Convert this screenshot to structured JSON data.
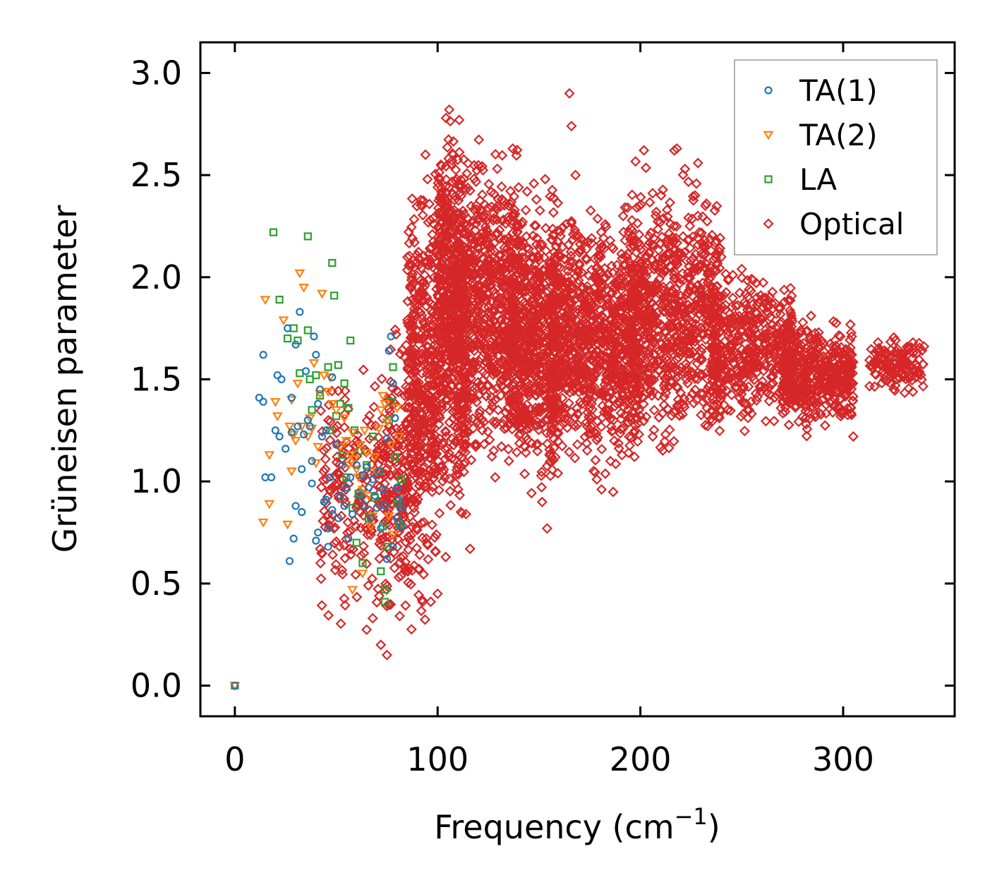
{
  "chart_data": {
    "type": "scatter",
    "title": "",
    "xlabel_base": "Frequency (cm",
    "xlabel_exp": "−1",
    "xlabel_end": ")",
    "ylabel": "Grüneisen parameter",
    "xlim": [
      -17,
      355
    ],
    "ylim": [
      -0.15,
      3.15
    ],
    "xticks": [
      0,
      100,
      200,
      300
    ],
    "xtick_labels": [
      "0",
      "100",
      "200",
      "300"
    ],
    "yticks": [
      0.0,
      0.5,
      1.0,
      1.5,
      2.0,
      2.5,
      3.0
    ],
    "ytick_labels": [
      "0.0",
      "0.5",
      "1.0",
      "1.5",
      "2.0",
      "2.5",
      "3.0"
    ],
    "grid": false,
    "legend_position": "top-right",
    "series": [
      {
        "name": "TA(1)",
        "marker": "circle",
        "color": "#1f77b4",
        "points": [
          [
            0,
            0.0
          ],
          [
            12,
            1.41
          ],
          [
            14,
            1.62
          ],
          [
            14,
            1.39
          ],
          [
            15,
            1.02
          ],
          [
            18,
            1.02
          ],
          [
            20,
            1.25
          ],
          [
            21,
            1.52
          ],
          [
            22,
            1.22
          ],
          [
            23,
            1.5
          ],
          [
            25,
            1.16
          ],
          [
            26,
            1.75
          ],
          [
            27,
            0.61
          ],
          [
            28,
            1.24
          ],
          [
            28,
            1.41
          ],
          [
            29,
            0.72
          ],
          [
            30,
            0.88
          ],
          [
            30,
            1.67
          ],
          [
            31,
            1.27
          ],
          [
            32,
            1.83
          ],
          [
            33,
            0.85
          ],
          [
            33,
            1.06
          ],
          [
            34,
            1.23
          ],
          [
            35,
            1.54
          ],
          [
            36,
            1.3
          ],
          [
            37,
            1.27
          ],
          [
            38,
            1.1
          ],
          [
            38,
            0.99
          ],
          [
            39,
            1.71
          ],
          [
            40,
            0.71
          ],
          [
            40,
            1.62
          ],
          [
            41,
            0.75
          ],
          [
            41,
            1.38
          ],
          [
            42,
            1.45
          ],
          [
            43,
            1.22
          ],
          [
            44,
            0.9
          ],
          [
            45,
            1.25
          ],
          [
            45,
            0.91
          ],
          [
            46,
            0.68
          ],
          [
            46,
            0.77
          ],
          [
            47,
            1.02
          ],
          [
            48,
            1.51
          ],
          [
            48,
            0.86
          ],
          [
            50,
            1.18
          ],
          [
            51,
            0.82
          ],
          [
            52,
            0.93
          ],
          [
            53,
            1.08
          ],
          [
            54,
            0.88
          ],
          [
            55,
            0.97
          ],
          [
            56,
            0.72
          ],
          [
            57,
            1.02
          ],
          [
            58,
            0.84
          ],
          [
            60,
            1.08
          ],
          [
            62,
            0.93
          ],
          [
            63,
            1.03
          ],
          [
            64,
            0.88
          ],
          [
            65,
            1.07
          ],
          [
            66,
            0.97
          ],
          [
            67,
            0.82
          ],
          [
            68,
            1.01
          ],
          [
            69,
            0.93
          ],
          [
            70,
            0.87
          ],
          [
            71,
            1.05
          ],
          [
            72,
            0.77
          ],
          [
            73,
            0.96
          ],
          [
            74,
            0.88
          ],
          [
            75,
            0.62
          ],
          [
            75,
            1.21
          ],
          [
            76,
            1.64
          ],
          [
            77,
            1.71
          ],
          [
            78,
            1.48
          ],
          [
            78,
            0.68
          ],
          [
            79,
            1.31
          ],
          [
            80,
            0.82
          ],
          [
            80,
            0.97
          ],
          [
            81,
            0.91
          ],
          [
            82,
            0.78
          ],
          [
            82,
            0.87
          ]
        ]
      },
      {
        "name": "TA(2)",
        "marker": "triangle-down",
        "color": "#ff7f0e",
        "points": [
          [
            0,
            0.0
          ],
          [
            14,
            0.8
          ],
          [
            15,
            1.89
          ],
          [
            17,
            1.13
          ],
          [
            17,
            0.89
          ],
          [
            20,
            1.39
          ],
          [
            21,
            1.32
          ],
          [
            24,
            1.79
          ],
          [
            26,
            0.79
          ],
          [
            27,
            1.27
          ],
          [
            28,
            1.4
          ],
          [
            28,
            1.05
          ],
          [
            29,
            1.23
          ],
          [
            30,
            1.2
          ],
          [
            31,
            1.48
          ],
          [
            32,
            2.02
          ],
          [
            33,
            1.27
          ],
          [
            34,
            1.95
          ],
          [
            36,
            1.22
          ],
          [
            37,
            1.31
          ],
          [
            38,
            1.26
          ],
          [
            39,
            1.58
          ],
          [
            40,
            1.09
          ],
          [
            41,
            1.17
          ],
          [
            42,
            1.43
          ],
          [
            43,
            1.92
          ],
          [
            44,
            1.52
          ],
          [
            46,
            1.44
          ],
          [
            47,
            1.51
          ],
          [
            48,
            1.38
          ],
          [
            50,
            1.35
          ],
          [
            52,
            1.17
          ],
          [
            54,
            1.31
          ],
          [
            55,
            1.2
          ],
          [
            56,
            1.08
          ],
          [
            57,
            1.13
          ],
          [
            58,
            1.24
          ],
          [
            59,
            1.11
          ],
          [
            60,
            1.06
          ],
          [
            61,
            1.02
          ],
          [
            62,
            1.18
          ],
          [
            63,
            0.96
          ],
          [
            64,
            1.25
          ],
          [
            65,
            1.14
          ],
          [
            66,
            0.93
          ],
          [
            67,
            0.78
          ],
          [
            68,
            0.83
          ],
          [
            69,
            1.12
          ],
          [
            70,
            1.05
          ],
          [
            71,
            1.26
          ],
          [
            72,
            1.35
          ],
          [
            73,
            1.42
          ],
          [
            74,
            1.38
          ],
          [
            75,
            1.29
          ],
          [
            76,
            0.83
          ],
          [
            77,
            1.18
          ],
          [
            78,
            0.74
          ],
          [
            80,
            1.36
          ],
          [
            81,
            1.22
          ],
          [
            58,
            0.47
          ],
          [
            63,
            0.55
          ]
        ]
      },
      {
        "name": "LA",
        "marker": "square",
        "color": "#2ca02c",
        "points": [
          [
            0,
            0.0
          ],
          [
            19,
            2.22
          ],
          [
            22,
            1.89
          ],
          [
            26,
            1.7
          ],
          [
            29,
            1.75
          ],
          [
            31,
            1.69
          ],
          [
            32,
            1.53
          ],
          [
            36,
            1.74
          ],
          [
            36,
            2.2
          ],
          [
            37,
            1.5
          ],
          [
            38,
            1.35
          ],
          [
            40,
            1.52
          ],
          [
            42,
            1.42
          ],
          [
            46,
            1.56
          ],
          [
            47,
            1.25
          ],
          [
            48,
            2.07
          ],
          [
            49,
            1.91
          ],
          [
            50,
            1.32
          ],
          [
            51,
            1.57
          ],
          [
            52,
            1.38
          ],
          [
            53,
            1.13
          ],
          [
            54,
            1.48
          ],
          [
            55,
            1.02
          ],
          [
            56,
            1.36
          ],
          [
            57,
            1.69
          ],
          [
            58,
            0.87
          ],
          [
            59,
            1.25
          ],
          [
            60,
            0.7
          ],
          [
            61,
            0.94
          ],
          [
            62,
            1.15
          ],
          [
            63,
            0.6
          ],
          [
            65,
            1.08
          ],
          [
            66,
            0.82
          ],
          [
            68,
            1.22
          ],
          [
            69,
            0.92
          ],
          [
            71,
            1.05
          ],
          [
            72,
            0.56
          ],
          [
            73,
            0.78
          ],
          [
            74,
            0.47
          ],
          [
            74,
            0.41
          ],
          [
            75,
            0.68
          ],
          [
            76,
            1.3
          ],
          [
            77,
            1.39
          ],
          [
            78,
            1.56
          ],
          [
            79,
            1.12
          ],
          [
            80,
            0.89
          ],
          [
            81,
            0.79
          ],
          [
            82,
            1.01
          ]
        ]
      },
      {
        "name": "Optical",
        "marker": "diamond",
        "color": "#d62728",
        "generated": true,
        "clusters": [
          {
            "x": [
              42,
              85
            ],
            "y": [
              0.15,
              1.7
            ],
            "n": 260
          },
          {
            "x": [
              72,
              100
            ],
            "y": [
              0.15,
              1.95
            ],
            "n": 220
          },
          {
            "x": [
              85,
              115
            ],
            "y": [
              0.55,
              2.65
            ],
            "n": 700
          },
          {
            "x": [
              100,
              112
            ],
            "y": [
              1.2,
              3.0
            ],
            "n": 260
          },
          {
            "x": [
              110,
              140
            ],
            "y": [
              0.9,
              2.8
            ],
            "n": 700
          },
          {
            "x": [
              135,
              160
            ],
            "y": [
              0.77,
              2.6
            ],
            "n": 650
          },
          {
            "x": [
              155,
              200
            ],
            "y": [
              0.9,
              2.5
            ],
            "n": 1000
          },
          {
            "x": [
              195,
              240
            ],
            "y": [
              1.0,
              2.65
            ],
            "n": 750
          },
          {
            "x": [
              235,
              275
            ],
            "y": [
              1.2,
              2.1
            ],
            "n": 450
          },
          {
            "x": [
              270,
              305
            ],
            "y": [
              1.2,
              1.85
            ],
            "n": 450
          },
          {
            "x": [
              313,
              340
            ],
            "y": [
              1.4,
              1.75
            ],
            "n": 150
          }
        ],
        "outliers": [
          [
            165,
            2.9
          ],
          [
            166,
            2.74
          ],
          [
            168,
            2.5
          ],
          [
            218,
            2.63
          ],
          [
            222,
            2.53
          ],
          [
            227,
            2.4
          ],
          [
            232,
            2.35
          ],
          [
            94,
            2.6
          ],
          [
            95,
            2.48
          ],
          [
            100,
            0.45
          ],
          [
            104,
            0.63
          ],
          [
            114,
            0.84
          ],
          [
            116,
            0.67
          ],
          [
            154,
            0.77
          ],
          [
            75,
            0.15
          ],
          [
            72,
            0.2
          ],
          [
            68,
            0.33
          ],
          [
            305,
            1.22
          ],
          [
            250,
            2.04
          ],
          [
            243,
            1.35
          ],
          [
            272,
            1.47
          ]
        ]
      }
    ]
  }
}
